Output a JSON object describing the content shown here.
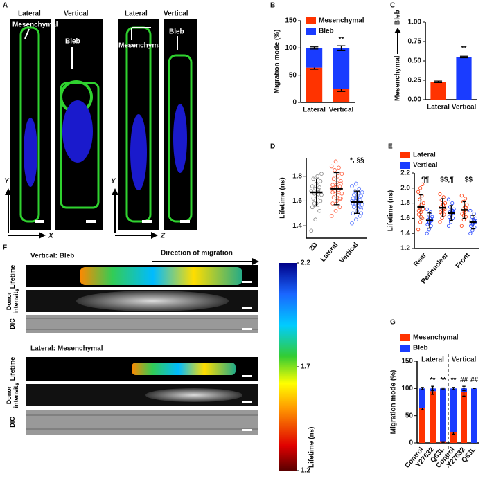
{
  "panel_letters": [
    "A",
    "B",
    "C",
    "D",
    "E",
    "F",
    "G"
  ],
  "panel_a": {
    "column_labels": [
      "Lateral",
      "Vertical",
      "Lateral",
      "Vertical"
    ],
    "annotations": [
      "Mesenchymal",
      "Bleb",
      "Mesenchymal",
      "Bleb"
    ],
    "axis_labels": [
      "Y",
      "X",
      "Y",
      "Z"
    ]
  },
  "panel_f": {
    "sections": [
      "Vertical: Bleb",
      "Lateral: Mesenchymal"
    ],
    "direction": "Direction of migration",
    "row_labels": [
      "Lifetime",
      "Donor intensity",
      "DIC"
    ],
    "colorbar": {
      "lim": [
        1.2,
        2.2
      ],
      "ticks": [
        1.2,
        1.7,
        2.2
      ],
      "label": "Lifetime (ns)"
    }
  },
  "chart_data": [
    {
      "type": "stacked_bar",
      "ylabel": "Migration mode (%)",
      "categories": [
        "Lateral",
        "Vertical"
      ],
      "series": [
        {
          "name": "Mesenchymal",
          "color": "#ff3300",
          "values": [
            64,
            25
          ],
          "errors": [
            3,
            5
          ]
        },
        {
          "name": "Bleb",
          "color": "#1a3cff",
          "values": [
            36,
            75
          ],
          "errors": [
            2,
            4
          ]
        }
      ],
      "annotations": [
        null,
        "**"
      ],
      "ylim": [
        0,
        150
      ],
      "yticks": [
        0,
        50,
        100,
        150
      ]
    },
    {
      "type": "bar",
      "ylabel_top": "Bleb",
      "ylabel_bottom": "Mesenchymal",
      "categories": [
        "Lateral",
        "Vertical"
      ],
      "values": [
        0.23,
        0.55
      ],
      "errors": [
        0.01,
        0.01
      ],
      "colors": [
        "#ff3300",
        "#1a3cff"
      ],
      "annotations": [
        null,
        "**"
      ],
      "ylim": [
        0,
        1
      ],
      "yticks": [
        {
          "value": 0,
          "label": "0.00"
        },
        {
          "value": 0.25,
          "label": "0.25"
        },
        {
          "value": 0.5,
          "label": "0.50"
        },
        {
          "value": 0.75,
          "label": "0.75"
        },
        {
          "value": 1,
          "label": "1.00"
        }
      ]
    },
    {
      "type": "dot_plot",
      "ylabel": "Lifetime (ns)",
      "categories": [
        "2D",
        "Lateral",
        "Vertical"
      ],
      "colors": [
        "#808080",
        "#ff5533",
        "#4a6cff"
      ],
      "points": [
        [
          1.36,
          1.45,
          1.52,
          1.55,
          1.58,
          1.6,
          1.62,
          1.63,
          1.65,
          1.66,
          1.67,
          1.68,
          1.7,
          1.71,
          1.72,
          1.74,
          1.76,
          1.78,
          1.8,
          1.82,
          1.58,
          1.69
        ],
        [
          1.48,
          1.52,
          1.55,
          1.58,
          1.6,
          1.62,
          1.63,
          1.65,
          1.66,
          1.68,
          1.69,
          1.7,
          1.71,
          1.72,
          1.73,
          1.75,
          1.76,
          1.78,
          1.8,
          1.82,
          1.85,
          1.87,
          1.88,
          1.92,
          1.62,
          1.67,
          1.71,
          1.74
        ],
        [
          1.42,
          1.45,
          1.48,
          1.5,
          1.52,
          1.54,
          1.55,
          1.56,
          1.57,
          1.58,
          1.59,
          1.6,
          1.6,
          1.61,
          1.62,
          1.63,
          1.64,
          1.65,
          1.66,
          1.67,
          1.68,
          1.7,
          1.72,
          1.74,
          1.55,
          1.58,
          1.62,
          1.5
        ]
      ],
      "means": [
        1.67,
        1.7,
        1.59
      ],
      "sds": [
        0.11,
        0.13,
        0.09
      ],
      "annotations": [
        null,
        null,
        "*, §§"
      ],
      "ylim": [
        1.3,
        1.95
      ],
      "yticks": [
        1.4,
        1.6,
        1.8
      ]
    },
    {
      "type": "grouped_dot_plot",
      "ylabel": "Lifetime (ns)",
      "categories": [
        "Rear",
        "Perinuclear",
        "Front"
      ],
      "series": [
        {
          "name": "Lateral",
          "color": "#ff3300",
          "points": [
            [
              1.45,
              1.55,
              1.6,
              1.65,
              1.68,
              1.72,
              1.75,
              1.78,
              1.8,
              1.85,
              1.9,
              1.95,
              2.0,
              2.05,
              1.7,
              1.62
            ],
            [
              1.55,
              1.6,
              1.65,
              1.68,
              1.7,
              1.72,
              1.75,
              1.78,
              1.8,
              1.84,
              1.88,
              1.92,
              1.66,
              1.74
            ],
            [
              1.5,
              1.58,
              1.62,
              1.66,
              1.68,
              1.7,
              1.72,
              1.75,
              1.78,
              1.82,
              1.86,
              1.9,
              1.64,
              1.74
            ]
          ],
          "means": [
            1.75,
            1.74,
            1.71
          ],
          "sds": [
            0.16,
            0.12,
            0.11
          ]
        },
        {
          "name": "Vertical",
          "color": "#1a3cff",
          "points": [
            [
              1.4,
              1.45,
              1.5,
              1.52,
              1.55,
              1.57,
              1.58,
              1.6,
              1.62,
              1.65,
              1.68,
              1.72,
              1.54,
              1.6
            ],
            [
              1.5,
              1.55,
              1.6,
              1.62,
              1.65,
              1.67,
              1.68,
              1.7,
              1.72,
              1.75,
              1.8,
              1.85,
              1.58,
              1.7
            ],
            [
              1.4,
              1.44,
              1.48,
              1.5,
              1.53,
              1.55,
              1.57,
              1.58,
              1.6,
              1.62,
              1.66,
              1.7,
              1.52,
              1.56
            ]
          ],
          "means": [
            1.57,
            1.67,
            1.55
          ],
          "sds": [
            0.1,
            0.1,
            0.09
          ]
        }
      ],
      "annotations": [
        "¶¶",
        "$$,¶",
        "$$"
      ],
      "ylim": [
        1.2,
        2.2
      ],
      "yticks": [
        1.2,
        1.4,
        1.6,
        1.8,
        {
          "value": 2,
          "label": "2.0"
        },
        2.2
      ]
    },
    {
      "type": "stacked_bar",
      "ylabel": "Migration mode (%)",
      "groups": [
        "Lateral",
        "Vertical"
      ],
      "categories": [
        "Control",
        "Y27632",
        "Q63L",
        "Control",
        "Y27632",
        "Q63L"
      ],
      "series": [
        {
          "name": "Mesenchymal",
          "color": "#ff3300",
          "values": [
            64,
            95,
            2,
            20,
            93,
            0
          ],
          "errors": [
            3,
            6,
            1,
            4,
            7,
            0
          ]
        },
        {
          "name": "Bleb",
          "color": "#1a3cff",
          "values": [
            36,
            5,
            98,
            80,
            7,
            100
          ],
          "errors": [
            2,
            4,
            1,
            2,
            4,
            0
          ]
        }
      ],
      "annotations": [
        null,
        "**",
        "**",
        "**",
        "##",
        "##"
      ],
      "ylim": [
        0,
        150
      ],
      "yticks": [
        0,
        50,
        100,
        150
      ]
    }
  ]
}
